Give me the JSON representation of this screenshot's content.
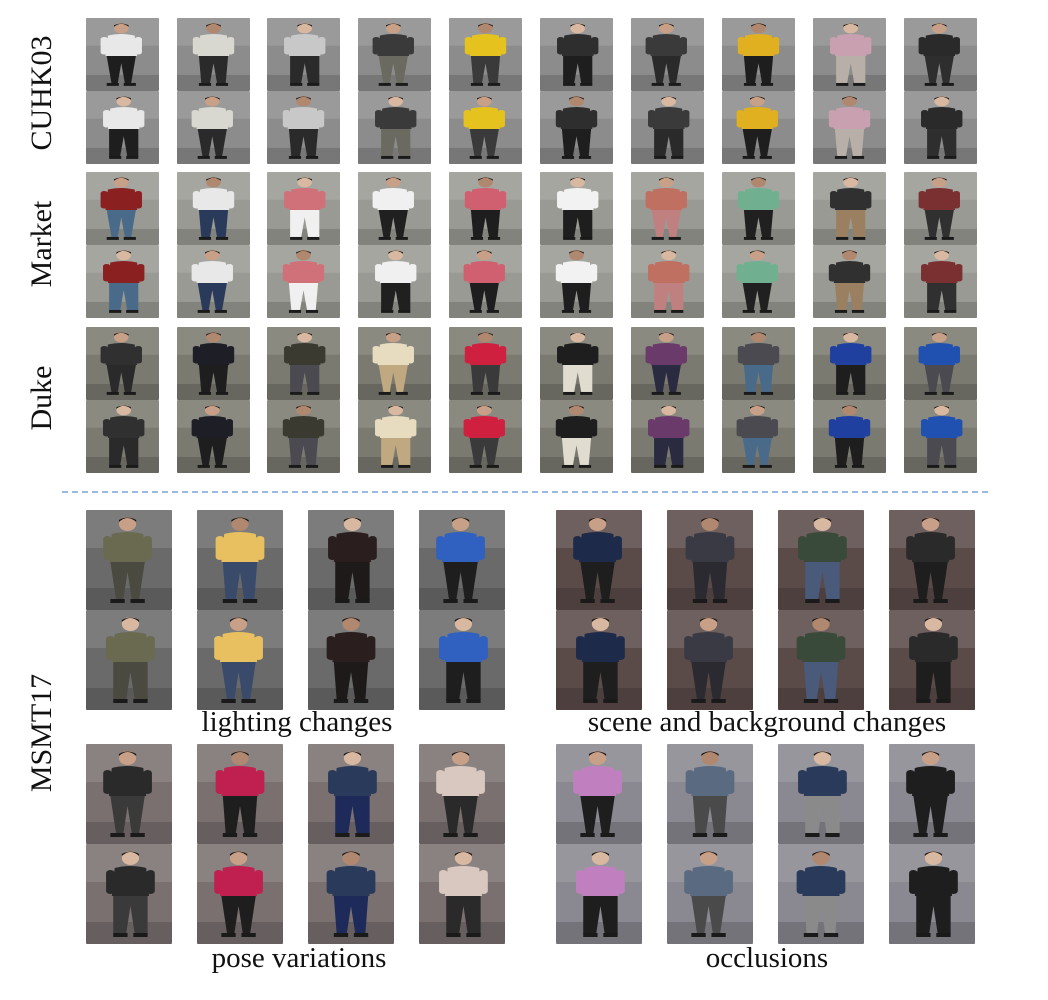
{
  "figure": {
    "top_datasets": [
      {
        "name": "CUHK03",
        "key": "cuhk03"
      },
      {
        "name": "Market",
        "key": "market"
      },
      {
        "name": "Duke",
        "key": "duke"
      }
    ],
    "bottom_dataset": {
      "name": "MSMT17"
    },
    "groups": [
      {
        "caption": "lighting changes",
        "key": "lighting"
      },
      {
        "caption": "scene and background changes",
        "key": "scene"
      },
      {
        "caption": "pose variations",
        "key": "pose"
      },
      {
        "caption": "occlusions",
        "key": "occlusion"
      }
    ]
  },
  "palettes": {
    "cuhk03": {
      "bg": "#8c8c8c",
      "shirts": [
        "#e8e8e8",
        "#d8d8d0",
        "#c8c8c8",
        "#3a3a3a",
        "#e6c21e",
        "#2e2e2e",
        "#3a3a3a",
        "#e0b020",
        "#c8a0b0",
        "#2a2a2a"
      ],
      "pants": [
        "#1e1e1e",
        "#2a2a2a",
        "#2a2a2a",
        "#6a6a60",
        "#3a3a3a",
        "#1e1e1e",
        "#2a2a2a",
        "#1e1e1e",
        "#b8b0a8",
        "#2e2e2e"
      ]
    },
    "market": {
      "bg": "#9a9a94",
      "shirts": [
        "#8a2020",
        "#e8e8e8",
        "#d07078",
        "#f0f0f0",
        "#d06070",
        "#f2f2f2",
        "#c07060",
        "#70b090",
        "#303030",
        "#7a3030"
      ],
      "pants": [
        "#4a6a8a",
        "#2a3a5a",
        "#f0f0f0",
        "#202020",
        "#1e1e1e",
        "#1e1e1e",
        "#c08080",
        "#202020",
        "#9a8060",
        "#303030"
      ]
    },
    "duke": {
      "bg": "#7a7a70",
      "shirts": [
        "#303030",
        "#1e1e26",
        "#3a3a30",
        "#e8dcc0",
        "#d02040",
        "#1e1e1e",
        "#6a3a6a",
        "#4a4a50",
        "#2040a0",
        "#2050b0"
      ],
      "pants": [
        "#2a2a2a",
        "#1e1e1e",
        "#4a4a50",
        "#c0a880",
        "#3a3a3a",
        "#e0dcd0",
        "#2a2a40",
        "#4a6a8a",
        "#1e1e1e",
        "#4a4a50"
      ]
    },
    "lighting": {
      "bg": "#6a6a6a",
      "shirts": [
        "#6a6a50",
        "#e8c060",
        "#2a1e1e",
        "#3060c0",
        "#202840",
        "#b09080",
        "#1e1a1a",
        "#3050a0"
      ],
      "pants": [
        "#4a4a40",
        "#3a4a6a",
        "#1e1a1a",
        "#1e1e1e",
        "#1e1e2a",
        "#2a2a30",
        "#1e1e1e",
        "#202020"
      ]
    },
    "scene": {
      "bg": "#5a4a48",
      "shirts": [
        "#1e2a4a",
        "#3a3a44",
        "#3a4a3a",
        "#2a2a2a",
        "#202a50",
        "#30c0c0",
        "#3a3030",
        "#2a2a30"
      ],
      "pants": [
        "#1e1e1e",
        "#2a2a30",
        "#4a5a7a",
        "#1e1e1e",
        "#1e1e2a",
        "#4a6a8a",
        "#3a4a6a",
        "#1e1e1e"
      ]
    },
    "pose": {
      "bg": "#7a7070",
      "shirts": [
        "#2a2a2a",
        "#c02050",
        "#2a3a5a",
        "#d8c8c0",
        "#1e1e1e",
        "#f04080",
        "#3a4a4a",
        "#f0e8e0"
      ],
      "pants": [
        "#3a3a3a",
        "#1e1e1e",
        "#1e2a5a",
        "#2a2a2a",
        "#2a2a2a",
        "#2a2a2a",
        "#1e1e1e",
        "#4a4a5a"
      ]
    },
    "occlusion": {
      "bg": "#8a8890",
      "shirts": [
        "#c080c0",
        "#5a6a80",
        "#2a3a5a",
        "#1e1e1e",
        "#c070c0",
        "#d8c8b0",
        "#1e2a5a",
        "#1e1e26"
      ],
      "pants": [
        "#1e1e1e",
        "#4a4a4a",
        "#8a8a8a",
        "#1e1e1e",
        "#1e1e1e",
        "#3a3a3a",
        "#c0a080",
        "#1e1e1e"
      ]
    }
  }
}
